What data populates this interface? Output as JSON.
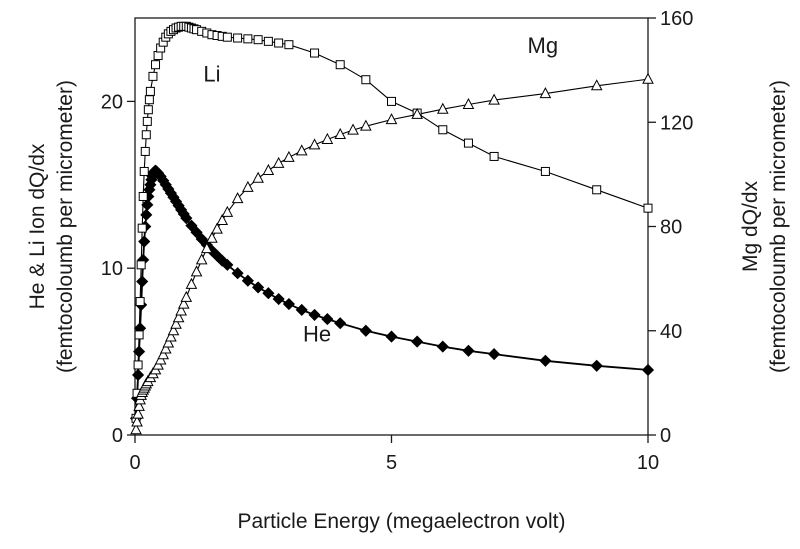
{
  "chart_data": {
    "type": "scatter",
    "title": "",
    "xlabel": "Particle Energy (megaelectron volt)",
    "ylabel_left": {
      "line1": "He & Li Ion dQ/dx",
      "line2": "(femtocoloumb per micrometer)"
    },
    "ylabel_right": {
      "line1": "Mg dQ/dx",
      "line2": "(femtocoloumb per micrometer)"
    },
    "xlim": [
      0,
      10
    ],
    "ylim_left": [
      0,
      25
    ],
    "ylim_right": [
      0,
      160
    ],
    "x_ticks": [
      0,
      5,
      10
    ],
    "y_left_ticks": [
      0,
      10,
      20
    ],
    "y_right_ticks": [
      0,
      40,
      80,
      120,
      160
    ],
    "grid": false,
    "legend": "inline labels",
    "series": [
      {
        "name": "He",
        "axis": "left",
        "marker": "filled-diamond",
        "color": "#000000",
        "x": [
          0.02,
          0.04,
          0.06,
          0.08,
          0.1,
          0.12,
          0.14,
          0.16,
          0.18,
          0.2,
          0.22,
          0.24,
          0.26,
          0.28,
          0.3,
          0.32,
          0.34,
          0.36,
          0.38,
          0.4,
          0.42,
          0.45,
          0.5,
          0.55,
          0.6,
          0.65,
          0.7,
          0.75,
          0.8,
          0.85,
          0.9,
          0.95,
          1.0,
          1.1,
          1.2,
          1.3,
          1.4,
          1.5,
          1.6,
          1.7,
          1.8,
          2.0,
          2.2,
          2.4,
          2.6,
          2.8,
          3.0,
          3.25,
          3.5,
          3.75,
          4.0,
          4.5,
          5.0,
          5.5,
          6.0,
          6.5,
          7.0,
          8.0,
          9.0,
          10.0
        ],
        "values": [
          1.0,
          2.2,
          3.6,
          5.0,
          6.4,
          7.8,
          9.2,
          10.5,
          11.6,
          12.5,
          13.2,
          13.8,
          14.3,
          14.7,
          15.0,
          15.3,
          15.5,
          15.7,
          15.8,
          15.85,
          15.8,
          15.7,
          15.5,
          15.25,
          15.0,
          14.75,
          14.5,
          14.25,
          14.0,
          13.75,
          13.5,
          13.25,
          13.0,
          12.55,
          12.15,
          11.75,
          11.4,
          11.05,
          10.75,
          10.45,
          10.2,
          9.7,
          9.25,
          8.85,
          8.5,
          8.15,
          7.85,
          7.5,
          7.2,
          6.95,
          6.7,
          6.25,
          5.9,
          5.6,
          5.3,
          5.05,
          4.85,
          4.45,
          4.15,
          3.9
        ]
      },
      {
        "name": "Li",
        "axis": "left",
        "marker": "open-square",
        "color": "#000000",
        "x": [
          0.02,
          0.04,
          0.06,
          0.08,
          0.1,
          0.12,
          0.14,
          0.16,
          0.18,
          0.2,
          0.22,
          0.24,
          0.26,
          0.28,
          0.3,
          0.35,
          0.4,
          0.45,
          0.5,
          0.55,
          0.6,
          0.65,
          0.7,
          0.75,
          0.8,
          0.85,
          0.9,
          0.95,
          1.0,
          1.05,
          1.1,
          1.15,
          1.2,
          1.3,
          1.4,
          1.5,
          1.6,
          1.7,
          1.8,
          2.0,
          2.2,
          2.4,
          2.6,
          2.8,
          3.0,
          3.5,
          4.0,
          4.5,
          5.0,
          5.5,
          6.0,
          6.5,
          7.0,
          8.0,
          9.0,
          10.0
        ],
        "values": [
          1.0,
          2.5,
          4.2,
          6.0,
          8.0,
          10.2,
          12.4,
          14.3,
          15.8,
          17.0,
          18.0,
          18.8,
          19.5,
          20.1,
          20.6,
          21.5,
          22.2,
          22.75,
          23.2,
          23.55,
          23.85,
          24.05,
          24.2,
          24.3,
          24.4,
          24.45,
          24.5,
          24.5,
          24.5,
          24.45,
          24.4,
          24.35,
          24.3,
          24.2,
          24.1,
          24.0,
          23.95,
          23.9,
          23.85,
          23.8,
          23.75,
          23.7,
          23.6,
          23.5,
          23.4,
          22.9,
          22.2,
          21.3,
          20.0,
          19.3,
          18.3,
          17.5,
          16.7,
          15.8,
          14.7,
          13.6
        ]
      },
      {
        "name": "Mg",
        "axis": "right",
        "marker": "open-triangle",
        "color": "#000000",
        "x": [
          0.02,
          0.04,
          0.06,
          0.08,
          0.1,
          0.12,
          0.14,
          0.16,
          0.18,
          0.2,
          0.22,
          0.25,
          0.3,
          0.35,
          0.4,
          0.45,
          0.5,
          0.55,
          0.6,
          0.65,
          0.7,
          0.75,
          0.8,
          0.85,
          0.9,
          0.95,
          1.0,
          1.1,
          1.2,
          1.3,
          1.4,
          1.5,
          1.6,
          1.7,
          1.8,
          2.0,
          2.2,
          2.4,
          2.6,
          2.8,
          3.0,
          3.25,
          3.5,
          3.75,
          4.0,
          4.25,
          4.5,
          5.0,
          5.5,
          6.0,
          6.5,
          7.0,
          8.0,
          9.0,
          10.0
        ],
        "values": [
          2.0,
          5.0,
          8.0,
          11.0,
          13.5,
          15.2,
          16.3,
          17.2,
          18.0,
          18.8,
          19.6,
          20.5,
          22.0,
          23.5,
          25.0,
          26.8,
          28.8,
          30.8,
          33.0,
          35.3,
          37.6,
          40.0,
          42.5,
          45.0,
          47.6,
          50.2,
          52.8,
          57.8,
          62.6,
          67.2,
          71.5,
          75.5,
          79.0,
          82.3,
          85.4,
          90.7,
          95.0,
          98.5,
          101.5,
          104.2,
          106.5,
          109.0,
          111.3,
          113.4,
          115.3,
          117.0,
          118.5,
          121.0,
          123.0,
          125.0,
          126.8,
          128.5,
          131.0,
          134.0,
          136.5
        ]
      }
    ],
    "annotations": [
      {
        "text": "Li",
        "x": 1.5,
        "y_left": 21.2
      },
      {
        "text": "Mg",
        "x": 7.95,
        "y_left": 22.9
      },
      {
        "text": "He",
        "x": 3.55,
        "y_left": 5.6
      }
    ]
  }
}
